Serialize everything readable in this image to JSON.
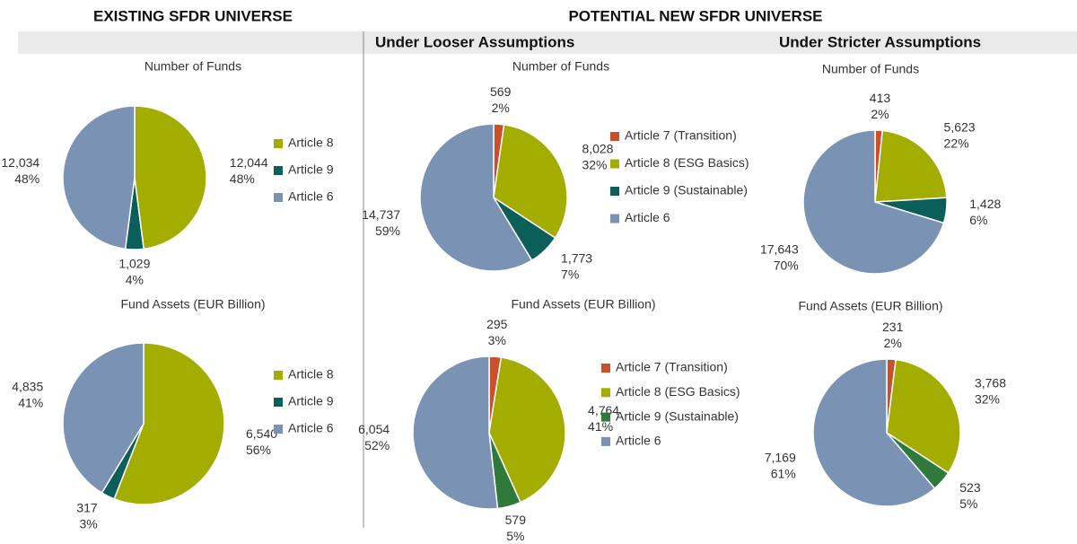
{
  "sections": {
    "existing": "EXISTING SFDR UNIVERSE",
    "potential": "POTENTIAL NEW SFDR UNIVERSE",
    "looser": "Under Looser Assumptions",
    "stricter": "Under Stricter Assumptions"
  },
  "chart_data": [
    {
      "type": "pie",
      "title": "Number of Funds",
      "categories": [
        "Article 8",
        "Article 9",
        "Article 6"
      ],
      "values": [
        12044,
        1029,
        12034
      ],
      "value_labels": [
        "12,044",
        "1,029",
        "12,034"
      ],
      "shares": [
        48,
        4,
        48
      ],
      "share_labels": [
        "48%",
        "4%",
        "48%"
      ],
      "colors": [
        "#a2ad00",
        "#0b5e5a",
        "#7a93b5"
      ],
      "legend": true
    },
    {
      "type": "pie",
      "title": "Fund Assets (EUR Billion)",
      "categories": [
        "Article 8",
        "Article 9",
        "Article 6"
      ],
      "values": [
        6540,
        317,
        4835
      ],
      "value_labels": [
        "6,540",
        "317",
        "4,835"
      ],
      "shares": [
        56,
        3,
        41
      ],
      "share_labels": [
        "56%",
        "3%",
        "41%"
      ],
      "colors": [
        "#a2ad00",
        "#0b5e5a",
        "#7a93b5"
      ],
      "legend": true
    },
    {
      "type": "pie",
      "title": "Number of Funds",
      "categories": [
        "Article 7 (Transition)",
        "Article 8 (ESG Basics)",
        "Article 9 (Sustainable)",
        "Article 6"
      ],
      "values": [
        569,
        8028,
        1773,
        14737
      ],
      "value_labels": [
        "569",
        "8,028",
        "1,773",
        "14,737"
      ],
      "shares": [
        2,
        32,
        7,
        59
      ],
      "share_labels": [
        "2%",
        "32%",
        "7%",
        "59%"
      ],
      "colors": [
        "#c8502a",
        "#a2ad00",
        "#0b5e5a",
        "#7a93b5"
      ],
      "legend": true
    },
    {
      "type": "pie",
      "title": "Fund Assets (EUR Billion)",
      "categories": [
        "Article 7 (Transition)",
        "Article 8 (ESG Basics)",
        "Article 9 (Sustainable)",
        "Article 6"
      ],
      "values": [
        295,
        4764,
        579,
        6054
      ],
      "value_labels": [
        "295",
        "4,764",
        "579",
        "6,054"
      ],
      "shares": [
        3,
        41,
        5,
        52
      ],
      "share_labels": [
        "3%",
        "41%",
        "5%",
        "52%"
      ],
      "colors": [
        "#c8502a",
        "#a2ad00",
        "#2f7a3a",
        "#7a93b5"
      ],
      "legend": true
    },
    {
      "type": "pie",
      "title": "Number of Funds",
      "values": [
        413,
        5623,
        1428,
        17643
      ],
      "value_labels": [
        "413",
        "5,623",
        "1,428",
        "17,643"
      ],
      "shares": [
        2,
        22,
        6,
        70
      ],
      "share_labels": [
        "2%",
        "22%",
        "6%",
        "70%"
      ],
      "colors": [
        "#c8502a",
        "#a2ad00",
        "#0b5e5a",
        "#7a93b5"
      ],
      "legend": false
    },
    {
      "type": "pie",
      "title": "Fund Assets (EUR Billion)",
      "values": [
        231,
        3768,
        523,
        7169
      ],
      "value_labels": [
        "231",
        "3,768",
        "523",
        "7,169"
      ],
      "shares": [
        2,
        32,
        5,
        61
      ],
      "share_labels": [
        "2%",
        "32%",
        "5%",
        "61%"
      ],
      "colors": [
        "#c8502a",
        "#a2ad00",
        "#2f7a3a",
        "#7a93b5"
      ],
      "legend": false
    }
  ]
}
